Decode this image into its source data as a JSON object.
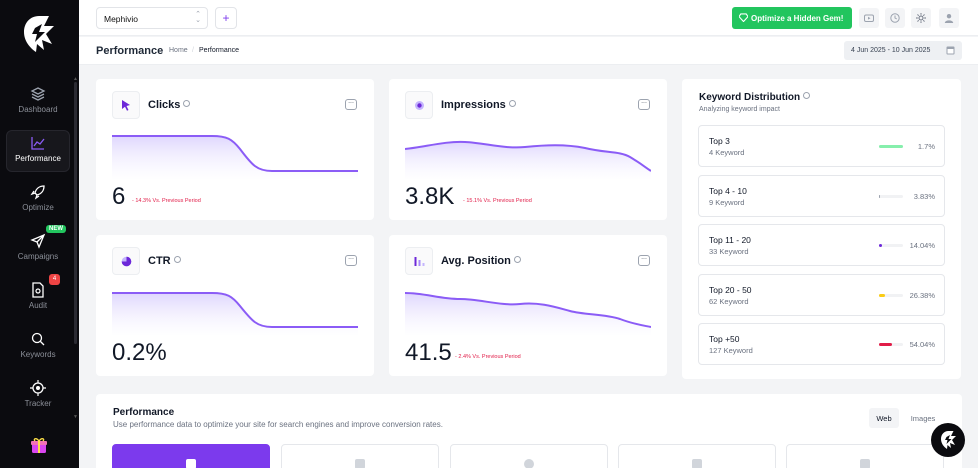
{
  "sidebar": {
    "items": [
      {
        "label": "Dashboard",
        "icon": "layers-icon"
      },
      {
        "label": "Performance",
        "icon": "chart-line-icon",
        "active": true
      },
      {
        "label": "Optimize",
        "icon": "rocket-icon"
      },
      {
        "label": "Campaigns",
        "icon": "send-icon",
        "badge": "NEW"
      },
      {
        "label": "Audit",
        "icon": "file-search-icon",
        "badge": "4"
      },
      {
        "label": "Keywords",
        "icon": "search-icon"
      },
      {
        "label": "Tracker",
        "icon": "crosshair-icon"
      }
    ]
  },
  "topbar": {
    "project": "Mephivio",
    "add_label": "+",
    "cta_label": "Optimize a Hidden Gem!",
    "icons": [
      "youtube-icon",
      "clock-icon",
      "sun-icon",
      "user-icon"
    ]
  },
  "header": {
    "title": "Performance",
    "breadcrumb": [
      "Home",
      "Performance"
    ],
    "date_range": "4 Jun 2025 - 10 Jun 2025"
  },
  "metrics": [
    {
      "label": "Clicks",
      "value": "6",
      "change": "- 14.3% Vs. Previous Period",
      "icon": "cursor-icon"
    },
    {
      "label": "Impressions",
      "value": "3.8K",
      "change": "- 15.1% Vs. Previous Period",
      "icon": "eye-icon"
    },
    {
      "label": "CTR",
      "value": "0.2%",
      "change": "",
      "icon": "pie-icon"
    },
    {
      "label": "Avg. Position",
      "value": "41.5",
      "change": "- 2.4% Vs. Previous Period",
      "icon": "bars-icon"
    }
  ],
  "more_label": "...",
  "keyword_distribution": {
    "title": "Keyword Distribution",
    "subtitle": "Analyzing keyword impact",
    "items": [
      {
        "name": "Top 3",
        "count": "4 Keyword",
        "percent": "1.7%",
        "fraction": 0.017,
        "color": "#86efac"
      },
      {
        "name": "Top 4 - 10",
        "count": "9 Keyword",
        "percent": "3.83%",
        "fraction": 0.0383,
        "color": "#9ca3af"
      },
      {
        "name": "Top 11 - 20",
        "count": "33 Keyword",
        "percent": "14.04%",
        "fraction": 0.1404,
        "color": "#6d28d9"
      },
      {
        "name": "Top 20 - 50",
        "count": "62 Keyword",
        "percent": "26.38%",
        "fraction": 0.2638,
        "color": "#facc15"
      },
      {
        "name": "Top +50",
        "count": "127 Keyword",
        "percent": "54.04%",
        "fraction": 0.5404,
        "color": "#e11d48"
      }
    ]
  },
  "performance_section": {
    "title": "Performance",
    "subtitle": "Use performance data to optimize your site for search engines and improve conversion rates.",
    "tabs": [
      "Web",
      "Images"
    ],
    "active_tab": "Web"
  },
  "colors": {
    "accent": "#7c3aed",
    "success": "#22c55e",
    "danger": "#e11d48"
  }
}
